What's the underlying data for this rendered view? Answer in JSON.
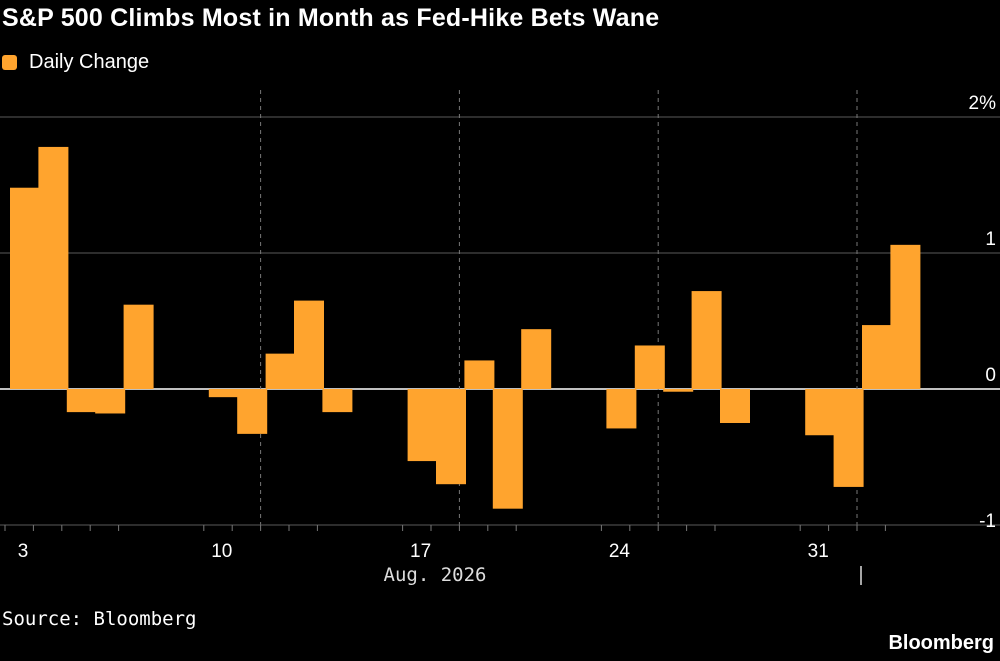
{
  "title": "S&P 500 Climbs Most in Month as Fed-Hike Bets Wane",
  "source": "Source: Bloomberg",
  "brand": "Bloomberg",
  "colors": {
    "bar": "#FFA42E",
    "background": "#000000",
    "grid": "#555555",
    "text": "#FFFFFF"
  },
  "chart_data": {
    "type": "bar",
    "series": [
      {
        "name": "Daily Change",
        "color": "#FFA42E",
        "points": [
          {
            "x": "2026-08-03",
            "y": 1.48
          },
          {
            "x": "2026-08-04",
            "y": 1.78
          },
          {
            "x": "2026-08-05",
            "y": -0.17
          },
          {
            "x": "2026-08-06",
            "y": -0.18
          },
          {
            "x": "2026-08-07",
            "y": 0.62
          },
          {
            "x": "2026-08-10",
            "y": -0.06
          },
          {
            "x": "2026-08-11",
            "y": -0.33
          },
          {
            "x": "2026-08-12",
            "y": 0.26
          },
          {
            "x": "2026-08-13",
            "y": 0.65
          },
          {
            "x": "2026-08-14",
            "y": -0.17
          },
          {
            "x": "2026-08-17",
            "y": -0.53
          },
          {
            "x": "2026-08-18",
            "y": -0.7
          },
          {
            "x": "2026-08-19",
            "y": 0.21
          },
          {
            "x": "2026-08-20",
            "y": -0.88
          },
          {
            "x": "2026-08-21",
            "y": 0.44
          },
          {
            "x": "2026-08-24",
            "y": -0.29
          },
          {
            "x": "2026-08-25",
            "y": 0.32
          },
          {
            "x": "2026-08-26",
            "y": -0.02
          },
          {
            "x": "2026-08-27",
            "y": 0.72
          },
          {
            "x": "2026-08-28",
            "y": -0.25
          },
          {
            "x": "2026-08-31",
            "y": -0.34
          },
          {
            "x": "2026-09-01",
            "y": -0.72
          },
          {
            "x": "2026-09-02",
            "y": 0.47
          },
          {
            "x": "2026-09-03",
            "y": 1.06
          }
        ]
      }
    ],
    "ylim": [
      -1,
      2
    ],
    "ytick_labels": [
      "2%",
      "1",
      "0",
      "-1"
    ],
    "xtick_labels": [
      "3",
      "10",
      "17",
      "24",
      "31"
    ],
    "xaxis_label": "Aug. 2026",
    "legend_position": "top-left",
    "y_axis_side": "right",
    "grid": true
  }
}
